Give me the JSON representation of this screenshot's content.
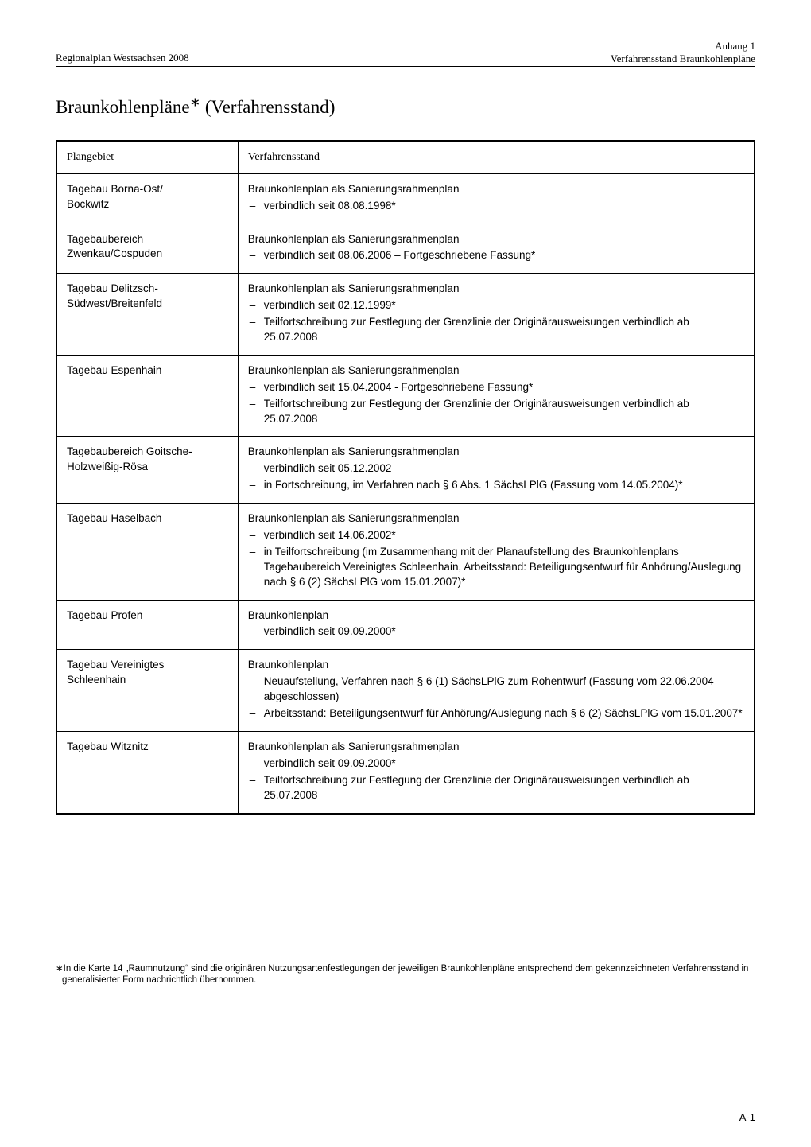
{
  "header": {
    "left": "Regionalplan Westsachsen 2008",
    "right_top": "Anhang 1",
    "right_bottom": "Verfahrensstand Braunkohlenpläne"
  },
  "title_main": "Braunkohlenpläne",
  "title_suffix": " (Verfahrensstand)",
  "footnote_marker": "∗",
  "footnote_text": "In die Karte 14 „Raumnutzung“ sind  die originären Nutzungsartenfestlegungen der jeweiligen Braunkohlenpläne entsprechend dem gekennzeichneten Verfahrensstand in generalisierter Form nachrichtlich übernommen.",
  "page_number": "A-1",
  "table": {
    "header_left": "Plangebiet",
    "header_right": "Verfahrensstand",
    "rows": [
      {
        "left": "Tagebau Borna-Ost/\nBockwitz",
        "right_title": "Braunkohlenplan als Sanierungsrahmenplan",
        "bullets": [
          "verbindlich seit 08.08.1998*"
        ]
      },
      {
        "left": "Tagebaubereich\nZwenkau/Cospuden",
        "right_title": "Braunkohlenplan als Sanierungsrahmenplan",
        "bullets": [
          "verbindlich seit 08.06.2006 – Fortgeschriebene Fassung*"
        ]
      },
      {
        "left": "Tagebau Delitzsch-\nSüdwest/Breitenfeld",
        "right_title": "Braunkohlenplan als Sanierungsrahmenplan",
        "bullets": [
          "verbindlich seit 02.12.1999*",
          "Teilfortschreibung zur Festlegung der Grenzlinie der Originärausweisungen verbindlich ab 25.07.2008"
        ]
      },
      {
        "left": "Tagebau Espenhain",
        "right_title": "Braunkohlenplan als Sanierungsrahmenplan",
        "bullets": [
          "verbindlich seit 15.04.2004 - Fortgeschriebene Fassung*",
          "Teilfortschreibung zur Festlegung der Grenzlinie der Originärausweisungen verbindlich ab 25.07.2008"
        ]
      },
      {
        "left": "Tagebaubereich Goitsche-\nHolzweißig-Rösa",
        "right_title": "Braunkohlenplan als Sanierungsrahmenplan",
        "bullets": [
          "verbindlich seit 05.12.2002",
          "in Fortschreibung, im Verfahren  nach § 6 Abs. 1 SächsLPlG (Fassung vom 14.05.2004)*"
        ]
      },
      {
        "left": "Tagebau Haselbach",
        "right_title": "Braunkohlenplan als Sanierungsrahmenplan",
        "bullets": [
          "verbindlich seit 14.06.2002*",
          "in Teilfortschreibung (im Zusammenhang mit der Planaufstellung des Braunkohlenplans Tagebaubereich Vereinigtes Schleenhain, Arbeitsstand: Beteiligungsentwurf für Anhörung/Auslegung nach § 6 (2) SächsLPlG vom 15.01.2007)*"
        ]
      },
      {
        "left": "Tagebau Profen",
        "right_title": "Braunkohlenplan",
        "bullets": [
          "verbindlich seit 09.09.2000*"
        ]
      },
      {
        "left": "Tagebau Vereinigtes\nSchleenhain",
        "right_title": "Braunkohlenplan",
        "bullets": [
          "Neuaufstellung, Verfahren nach § 6 (1) SächsLPlG zum Rohentwurf (Fassung vom 22.06.2004 abgeschlossen)",
          "Arbeitsstand: Beteiligungsentwurf für Anhörung/Auslegung nach § 6 (2) SächsLPlG vom 15.01.2007*"
        ]
      },
      {
        "left": "Tagebau Witznitz",
        "right_title": "Braunkohlenplan als Sanierungsrahmenplan",
        "bullets": [
          "verbindlich seit 09.09.2000*",
          "Teilfortschreibung zur Festlegung der Grenzlinie der Originärausweisungen verbindlich ab 25.07.2008"
        ]
      }
    ]
  }
}
